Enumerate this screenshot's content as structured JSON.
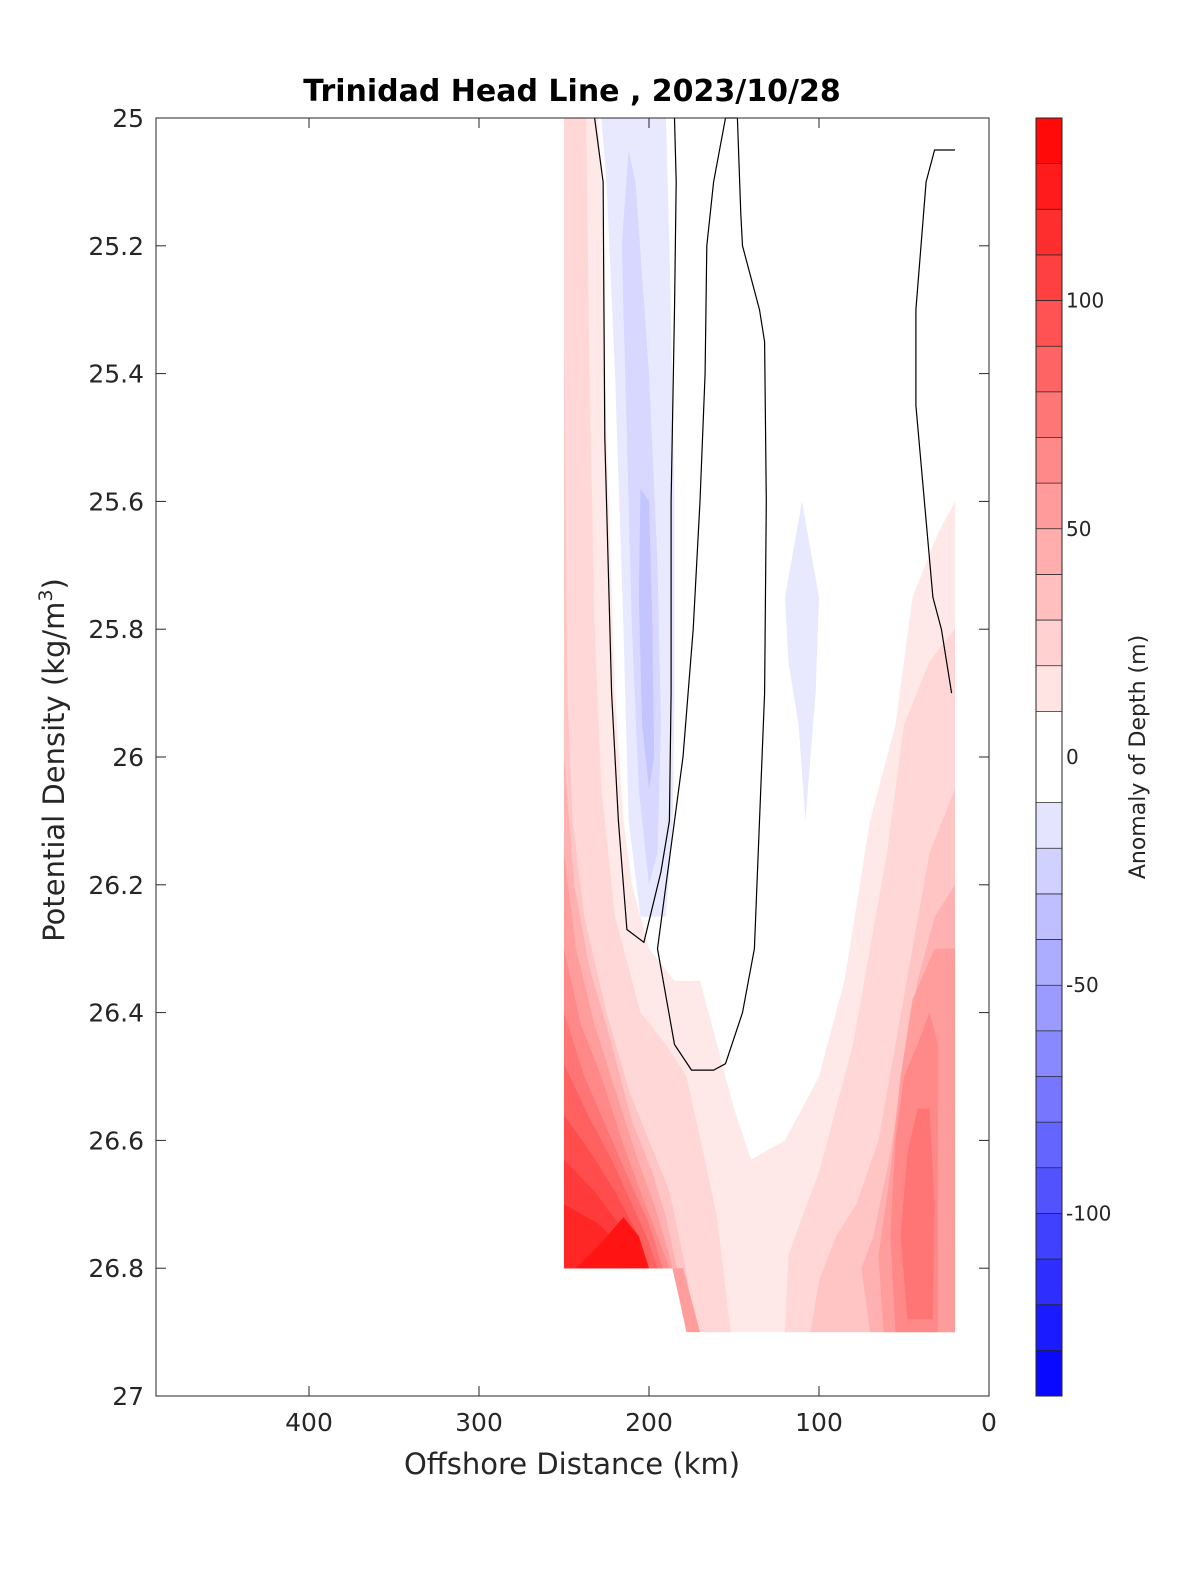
{
  "chart_data": {
    "type": "filled-contour",
    "title": "Trinidad Head Line , 2023/10/28",
    "xlabel": "Offshore Distance (km)",
    "ylabel_main": "Potential Density (kg/m",
    "ylabel_sup": "3",
    "ylabel_end": ")",
    "colorbar_label": "Anomaly of Depth (m)",
    "x_reversed": true,
    "xlim": [
      0,
      490
    ],
    "ylim": [
      25,
      27
    ],
    "y_reversed": true,
    "xticks": [
      400,
      300,
      200,
      100,
      0
    ],
    "xtick_labels": [
      "400",
      "300",
      "200",
      "100",
      "0"
    ],
    "yticks": [
      25,
      25.2,
      25.4,
      25.6,
      25.8,
      26,
      26.2,
      26.4,
      26.6,
      26.8,
      27
    ],
    "ytick_labels": [
      "25",
      "25.2",
      "25.4",
      "25.6",
      "25.8",
      "26",
      "26.2",
      "26.4",
      "26.6",
      "26.8",
      "27"
    ],
    "colorbar": {
      "range": [
        -140,
        140
      ],
      "step": 10,
      "ticks": [
        100,
        50,
        0,
        -50,
        -100
      ],
      "tick_labels": [
        "100",
        "50",
        "0",
        "-50",
        "-100"
      ],
      "colormap": "blue-white-red"
    },
    "data_domain": {
      "x_range_km": [
        20,
        250
      ],
      "note_bottom": "data extends to 26.9 for x <= 180 km"
    },
    "contour_levels": [
      -10,
      0
    ],
    "regions": [
      {
        "level": 10,
        "color": "#ffe8e8",
        "points": [
          [
            250,
            25
          ],
          [
            230,
            25
          ],
          [
            228,
            25.1
          ],
          [
            225,
            25.5
          ],
          [
            220,
            25.9
          ],
          [
            215,
            26.1
          ],
          [
            210,
            26.2
          ],
          [
            200,
            26.3
          ],
          [
            185,
            26.35
          ],
          [
            170,
            26.35
          ],
          [
            160,
            26.45
          ],
          [
            150,
            26.55
          ],
          [
            140,
            26.63
          ],
          [
            120,
            26.6
          ],
          [
            100,
            26.5
          ],
          [
            85,
            26.35
          ],
          [
            70,
            26.1
          ],
          [
            55,
            25.95
          ],
          [
            45,
            25.75
          ],
          [
            30,
            25.65
          ],
          [
            20,
            25.6
          ],
          [
            20,
            26.9
          ],
          [
            170,
            26.9
          ],
          [
            180,
            26.8
          ],
          [
            250,
            26.8
          ]
        ]
      },
      {
        "level": 20,
        "color": "#ffd7d7",
        "points": [
          [
            250,
            25
          ],
          [
            237,
            25
          ],
          [
            235,
            25.4
          ],
          [
            232,
            25.8
          ],
          [
            228,
            26.05
          ],
          [
            220,
            26.25
          ],
          [
            205,
            26.4
          ],
          [
            190,
            26.45
          ],
          [
            178,
            26.5
          ],
          [
            168,
            26.62
          ],
          [
            160,
            26.72
          ],
          [
            152,
            26.9
          ],
          [
            120,
            26.9
          ],
          [
            118,
            26.78
          ],
          [
            110,
            26.72
          ],
          [
            100,
            26.65
          ],
          [
            90,
            26.55
          ],
          [
            80,
            26.45
          ],
          [
            70,
            26.3
          ],
          [
            60,
            26.15
          ],
          [
            50,
            25.95
          ],
          [
            35,
            25.85
          ],
          [
            20,
            25.8
          ],
          [
            20,
            26.9
          ],
          [
            170,
            26.9
          ],
          [
            180,
            26.8
          ],
          [
            250,
            26.8
          ]
        ]
      },
      {
        "level": 30,
        "color": "#ffc4c4",
        "points": [
          [
            250,
            25.35
          ],
          [
            248,
            25.9
          ],
          [
            245,
            26.1
          ],
          [
            238,
            26.25
          ],
          [
            225,
            26.4
          ],
          [
            212,
            26.52
          ],
          [
            200,
            26.6
          ],
          [
            188,
            26.68
          ],
          [
            180,
            26.78
          ],
          [
            172,
            26.9
          ],
          [
            105,
            26.9
          ],
          [
            100,
            26.82
          ],
          [
            90,
            26.75
          ],
          [
            78,
            26.7
          ],
          [
            65,
            26.6
          ],
          [
            55,
            26.45
          ],
          [
            45,
            26.3
          ],
          [
            35,
            26.15
          ],
          [
            20,
            26.05
          ],
          [
            20,
            26.9
          ],
          [
            170,
            26.9
          ],
          [
            180,
            26.8
          ],
          [
            250,
            26.8
          ]
        ]
      },
      {
        "level": 40,
        "color": "#ffb0b0",
        "points": [
          [
            250,
            26.0
          ],
          [
            244,
            26.2
          ],
          [
            235,
            26.33
          ],
          [
            222,
            26.45
          ],
          [
            210,
            26.57
          ],
          [
            198,
            26.65
          ],
          [
            190,
            26.72
          ],
          [
            182,
            26.82
          ],
          [
            175,
            26.9
          ],
          [
            70,
            26.9
          ],
          [
            75,
            26.8
          ],
          [
            68,
            26.75
          ],
          [
            58,
            26.62
          ],
          [
            50,
            26.48
          ],
          [
            42,
            26.35
          ],
          [
            32,
            26.25
          ],
          [
            20,
            26.2
          ],
          [
            20,
            26.9
          ],
          [
            170,
            26.9
          ],
          [
            180,
            26.8
          ],
          [
            250,
            26.8
          ]
        ]
      },
      {
        "level": 50,
        "color": "#ff9c9c",
        "points": [
          [
            250,
            26.15
          ],
          [
            243,
            26.3
          ],
          [
            232,
            26.42
          ],
          [
            220,
            26.52
          ],
          [
            208,
            26.62
          ],
          [
            197,
            26.7
          ],
          [
            188,
            26.78
          ],
          [
            182,
            26.85
          ],
          [
            178,
            26.9
          ],
          [
            62,
            26.9
          ],
          [
            65,
            26.78
          ],
          [
            58,
            26.65
          ],
          [
            52,
            26.5
          ],
          [
            45,
            26.38
          ],
          [
            32,
            26.3
          ],
          [
            20,
            26.3
          ],
          [
            20,
            26.9
          ],
          [
            170,
            26.9
          ],
          [
            180,
            26.8
          ],
          [
            250,
            26.8
          ]
        ]
      },
      {
        "level": 60,
        "color": "#ff8888",
        "points": [
          [
            250,
            26.3
          ],
          [
            240,
            26.42
          ],
          [
            228,
            26.5
          ],
          [
            216,
            26.6
          ],
          [
            205,
            26.68
          ],
          [
            195,
            26.75
          ],
          [
            188,
            26.8
          ],
          [
            250,
            26.8
          ]
        ]
      },
      {
        "level": 60,
        "color": "#ff8888",
        "points": [
          [
            55,
            26.9
          ],
          [
            58,
            26.75
          ],
          [
            55,
            26.6
          ],
          [
            50,
            26.5
          ],
          [
            42,
            26.45
          ],
          [
            35,
            26.4
          ],
          [
            30,
            26.45
          ],
          [
            30,
            26.9
          ]
        ]
      },
      {
        "level": 70,
        "color": "#ff7575",
        "points": [
          [
            250,
            26.4
          ],
          [
            238,
            26.5
          ],
          [
            225,
            26.58
          ],
          [
            212,
            26.66
          ],
          [
            200,
            26.73
          ],
          [
            192,
            26.8
          ],
          [
            250,
            26.8
          ]
        ]
      },
      {
        "level": 70,
        "color": "#ff7575",
        "points": [
          [
            48,
            26.88
          ],
          [
            52,
            26.75
          ],
          [
            48,
            26.62
          ],
          [
            42,
            26.55
          ],
          [
            35,
            26.55
          ],
          [
            32,
            26.7
          ],
          [
            33,
            26.88
          ]
        ]
      },
      {
        "level": 80,
        "color": "#ff6161",
        "points": [
          [
            250,
            26.48
          ],
          [
            236,
            26.56
          ],
          [
            222,
            26.63
          ],
          [
            210,
            26.7
          ],
          [
            200,
            26.76
          ],
          [
            195,
            26.8
          ],
          [
            250,
            26.8
          ]
        ]
      },
      {
        "level": 90,
        "color": "#ff4d4d",
        "points": [
          [
            250,
            26.56
          ],
          [
            234,
            26.62
          ],
          [
            220,
            26.68
          ],
          [
            208,
            26.74
          ],
          [
            200,
            26.8
          ],
          [
            250,
            26.8
          ]
        ]
      },
      {
        "level": 100,
        "color": "#ff3a3a",
        "points": [
          [
            250,
            26.63
          ],
          [
            232,
            26.68
          ],
          [
            218,
            26.73
          ],
          [
            205,
            26.78
          ],
          [
            202,
            26.8
          ],
          [
            250,
            26.8
          ]
        ]
      },
      {
        "level": 110,
        "color": "#ff2626",
        "points": [
          [
            250,
            26.7
          ],
          [
            230,
            26.73
          ],
          [
            215,
            26.77
          ],
          [
            208,
            26.8
          ],
          [
            250,
            26.8
          ]
        ]
      },
      {
        "level": 120,
        "color": "#ff1313",
        "points": [
          [
            243,
            26.8
          ],
          [
            228,
            26.76
          ],
          [
            215,
            26.72
          ],
          [
            206,
            26.75
          ],
          [
            200,
            26.8
          ]
        ]
      },
      {
        "level": -10,
        "color": "#e8e8ff",
        "points": [
          [
            228,
            25
          ],
          [
            212,
            25
          ],
          [
            190,
            25
          ],
          [
            188,
            25.2
          ],
          [
            185,
            25.6
          ],
          [
            185,
            25.9
          ],
          [
            186,
            26.1
          ],
          [
            190,
            26.25
          ],
          [
            205,
            26.25
          ],
          [
            212,
            26.1
          ],
          [
            215,
            25.8
          ],
          [
            220,
            25.4
          ],
          [
            225,
            25.1
          ]
        ]
      },
      {
        "level": -10,
        "color": "#e8e8ff",
        "points": [
          [
            120,
            25.75
          ],
          [
            110,
            25.6
          ],
          [
            100,
            25.75
          ],
          [
            102,
            25.9
          ],
          [
            108,
            26.1
          ],
          [
            112,
            25.95
          ],
          [
            118,
            25.85
          ]
        ]
      },
      {
        "level": -20,
        "color": "#d7d7ff",
        "points": [
          [
            212,
            25.05
          ],
          [
            208,
            25.1
          ],
          [
            200,
            25.4
          ],
          [
            195,
            25.7
          ],
          [
            193,
            25.95
          ],
          [
            195,
            26.15
          ],
          [
            200,
            26.2
          ],
          [
            206,
            26.05
          ],
          [
            210,
            25.8
          ],
          [
            214,
            25.4
          ],
          [
            216,
            25.2
          ]
        ]
      },
      {
        "level": -30,
        "color": "#c4c4ff",
        "points": [
          [
            205,
            25.58
          ],
          [
            200,
            25.6
          ],
          [
            198,
            25.8
          ],
          [
            197,
            26.0
          ],
          [
            200,
            26.05
          ],
          [
            204,
            25.95
          ],
          [
            206,
            25.75
          ]
        ]
      }
    ],
    "contour_lines": [
      {
        "level": 0,
        "points": [
          [
            232,
            25
          ],
          [
            227,
            25.1
          ],
          [
            226,
            25.5
          ],
          [
            222,
            25.9
          ],
          [
            218,
            26.1
          ],
          [
            213,
            26.27
          ],
          [
            203,
            26.29
          ],
          [
            193,
            26.18
          ],
          [
            188,
            26.1
          ],
          [
            187,
            25.9
          ],
          [
            187,
            25.6
          ],
          [
            185,
            25.3
          ],
          [
            184,
            25.1
          ],
          [
            185,
            25
          ]
        ]
      },
      {
        "level": 0,
        "points": [
          [
            148,
            25
          ],
          [
            146,
            25.15
          ],
          [
            145,
            25.2
          ],
          [
            135,
            25.3
          ],
          [
            132,
            25.35
          ],
          [
            131,
            25.6
          ],
          [
            132,
            25.9
          ],
          [
            135,
            26.1
          ],
          [
            138,
            26.3
          ],
          [
            145,
            26.4
          ],
          [
            155,
            26.48
          ],
          [
            162,
            26.49
          ],
          [
            175,
            26.49
          ],
          [
            185,
            26.45
          ],
          [
            195,
            26.3
          ],
          [
            190,
            26.2
          ],
          [
            180,
            26.0
          ],
          [
            174,
            25.8
          ],
          [
            170,
            25.6
          ],
          [
            167,
            25.4
          ],
          [
            166,
            25.2
          ],
          [
            162,
            25.1
          ],
          [
            155,
            25
          ],
          [
            148,
            25
          ]
        ]
      },
      {
        "level": 0,
        "points": [
          [
            20,
            25.05
          ],
          [
            32,
            25.05
          ],
          [
            37,
            25.1
          ],
          [
            43,
            25.3
          ],
          [
            43,
            25.45
          ],
          [
            38,
            25.6
          ],
          [
            33,
            25.75
          ],
          [
            28,
            25.8
          ],
          [
            22,
            25.9
          ]
        ]
      }
    ]
  }
}
